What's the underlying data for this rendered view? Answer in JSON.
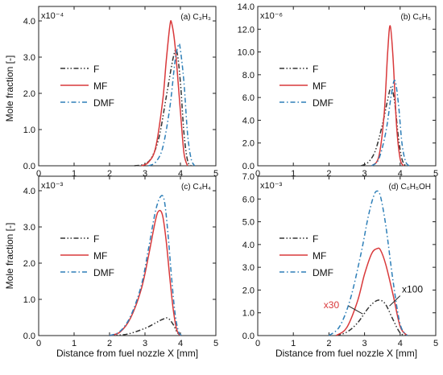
{
  "figure": {
    "ylabel": "Mole fraction [-]",
    "xlabel": "Distance from fuel nozzle X [mm]"
  },
  "colors": {
    "F": "#333333",
    "MF": "#d9393b",
    "DMF": "#2e7fb8"
  },
  "chart_data": [
    {
      "type": "line",
      "panel_label": "(a) C₃H₃",
      "multiplier": "x10⁻⁴",
      "xlim": [
        0,
        5
      ],
      "ylim": [
        0,
        4.4
      ],
      "xticks": [
        "0",
        "1",
        "2",
        "3",
        "4",
        "5"
      ],
      "yticks": [
        "0.0",
        "1.0",
        "2.0",
        "3.0",
        "4.0"
      ],
      "legend": [
        "F",
        "MF",
        "DMF"
      ],
      "series": [
        {
          "name": "F",
          "style": "dash-dot-dot",
          "x": [
            2.7,
            3.0,
            3.2,
            3.4,
            3.6,
            3.8,
            3.9,
            4.0,
            4.1,
            4.2,
            4.3
          ],
          "y": [
            0,
            0.05,
            0.25,
            0.8,
            1.9,
            3.0,
            3.15,
            2.3,
            0.9,
            0.15,
            0
          ]
        },
        {
          "name": "MF",
          "style": "solid",
          "x": [
            2.9,
            3.1,
            3.3,
            3.5,
            3.6,
            3.7,
            3.75,
            3.85,
            4.0,
            4.1,
            4.2
          ],
          "y": [
            0,
            0.1,
            0.5,
            1.8,
            2.9,
            3.85,
            3.95,
            3.3,
            1.5,
            0.35,
            0
          ]
        },
        {
          "name": "DMF",
          "style": "dash-dot",
          "x": [
            3.1,
            3.3,
            3.5,
            3.7,
            3.85,
            3.95,
            4.0,
            4.1,
            4.2,
            4.3,
            4.4
          ],
          "y": [
            0,
            0.1,
            0.5,
            1.6,
            2.9,
            3.35,
            3.2,
            2.3,
            0.9,
            0.2,
            0
          ]
        }
      ]
    },
    {
      "type": "line",
      "panel_label": "(b) C₆H₅",
      "multiplier": "x10⁻⁶",
      "xlim": [
        0,
        5
      ],
      "ylim": [
        0,
        14
      ],
      "xticks": [
        "0",
        "1",
        "2",
        "3",
        "4",
        "5"
      ],
      "yticks": [
        "0.0",
        "2.0",
        "4.0",
        "6.0",
        "8.0",
        "10.0",
        "12.0",
        "14.0"
      ],
      "legend": [
        "F",
        "MF",
        "DMF"
      ],
      "series": [
        {
          "name": "F",
          "style": "dash-dot-dot",
          "x": [
            2.9,
            3.1,
            3.3,
            3.5,
            3.65,
            3.75,
            3.85,
            3.95,
            4.05,
            4.15
          ],
          "y": [
            0,
            0.3,
            1.3,
            3.6,
            5.8,
            6.9,
            5.5,
            2.5,
            0.6,
            0
          ]
        },
        {
          "name": "MF",
          "style": "solid",
          "x": [
            3.2,
            3.4,
            3.55,
            3.65,
            3.72,
            3.8,
            3.9,
            4.0,
            4.1
          ],
          "y": [
            0,
            0.8,
            4.5,
            10.0,
            12.3,
            9.5,
            3.5,
            0.6,
            0
          ]
        },
        {
          "name": "DMF",
          "style": "dash-dot",
          "x": [
            3.2,
            3.4,
            3.6,
            3.75,
            3.85,
            3.95,
            4.05,
            4.15,
            4.25
          ],
          "y": [
            0,
            0.6,
            3.0,
            6.2,
            7.5,
            5.5,
            2.0,
            0.4,
            0
          ]
        }
      ]
    },
    {
      "type": "line",
      "panel_label": "(c) C₄H₄",
      "multiplier": "x10⁻³",
      "xlim": [
        0,
        5
      ],
      "ylim": [
        0,
        4.4
      ],
      "xticks": [
        "0",
        "1",
        "2",
        "3",
        "4",
        "5"
      ],
      "yticks": [
        "0.0",
        "1.0",
        "2.0",
        "3.0",
        "4.0"
      ],
      "legend": [
        "F",
        "MF",
        "DMF"
      ],
      "series": [
        {
          "name": "F",
          "style": "dash-dot-dot",
          "x": [
            2.0,
            2.5,
            3.0,
            3.3,
            3.5,
            3.65,
            3.8,
            3.9,
            4.0
          ],
          "y": [
            0,
            0.04,
            0.2,
            0.35,
            0.45,
            0.48,
            0.3,
            0.1,
            0
          ]
        },
        {
          "name": "MF",
          "style": "solid",
          "x": [
            2.0,
            2.3,
            2.6,
            2.9,
            3.1,
            3.3,
            3.4,
            3.5,
            3.6,
            3.7,
            3.8,
            3.9,
            4.0
          ],
          "y": [
            0,
            0.1,
            0.5,
            1.3,
            2.2,
            3.2,
            3.45,
            3.3,
            2.6,
            1.6,
            0.7,
            0.15,
            0
          ]
        },
        {
          "name": "DMF",
          "style": "dash-dot",
          "x": [
            2.0,
            2.3,
            2.6,
            2.9,
            3.1,
            3.3,
            3.45,
            3.55,
            3.65,
            3.75,
            3.85,
            3.95,
            4.05
          ],
          "y": [
            0,
            0.12,
            0.55,
            1.4,
            2.4,
            3.45,
            3.85,
            3.7,
            2.8,
            1.6,
            0.6,
            0.1,
            0
          ]
        }
      ]
    },
    {
      "type": "line",
      "panel_label": "(d) C₆H₅OH",
      "multiplier": "x10⁻³",
      "xlim": [
        0,
        5
      ],
      "ylim": [
        0,
        7.0
      ],
      "xticks": [
        "0",
        "1",
        "2",
        "3",
        "4",
        "5"
      ],
      "yticks": [
        "0.0",
        "1.0",
        "2.0",
        "3.0",
        "4.0",
        "5.0",
        "6.0",
        "7.0"
      ],
      "legend": [
        "F",
        "MF",
        "DMF"
      ],
      "annotations": [
        "x30",
        "x100"
      ],
      "series": [
        {
          "name": "F",
          "style": "dash-dot-dot",
          "x": [
            2.2,
            2.5,
            2.8,
            3.1,
            3.3,
            3.45,
            3.6,
            3.8,
            4.0,
            4.2
          ],
          "y": [
            0,
            0.15,
            0.55,
            1.2,
            1.5,
            1.55,
            1.35,
            0.7,
            0.12,
            0
          ]
        },
        {
          "name": "MF",
          "style": "solid",
          "x": [
            2.2,
            2.5,
            2.8,
            3.0,
            3.2,
            3.35,
            3.45,
            3.6,
            3.8,
            4.0,
            4.2
          ],
          "y": [
            0,
            0.35,
            1.5,
            2.7,
            3.6,
            3.82,
            3.75,
            3.1,
            1.8,
            0.4,
            0
          ]
        },
        {
          "name": "DMF",
          "style": "dash-dot",
          "x": [
            2.0,
            2.3,
            2.6,
            2.9,
            3.1,
            3.25,
            3.35,
            3.45,
            3.6,
            3.8,
            4.0,
            4.2
          ],
          "y": [
            0,
            0.4,
            1.6,
            3.6,
            5.2,
            6.1,
            6.35,
            6.1,
            4.8,
            2.4,
            0.5,
            0
          ]
        }
      ]
    }
  ]
}
